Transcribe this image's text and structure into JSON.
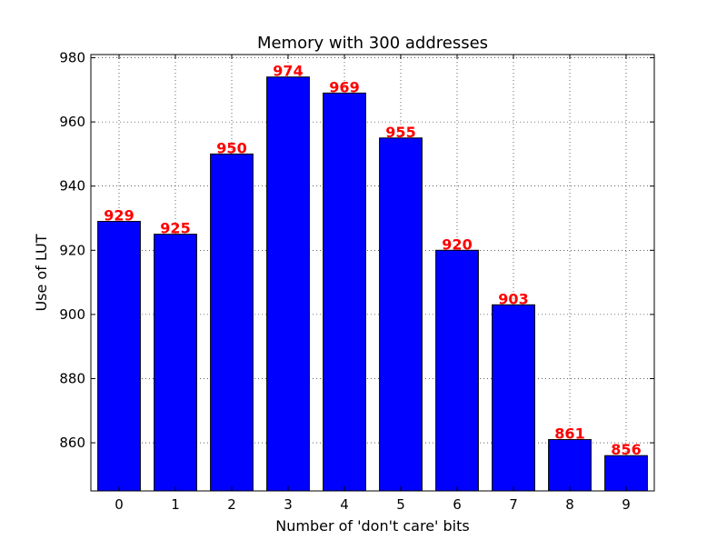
{
  "chart_data": {
    "type": "bar",
    "title": "Memory with 300 addresses",
    "xlabel": "Number of 'don't care' bits",
    "ylabel": "Use of LUT",
    "categories": [
      "0",
      "1",
      "2",
      "3",
      "4",
      "5",
      "6",
      "7",
      "8",
      "9"
    ],
    "values": [
      929,
      925,
      950,
      974,
      969,
      955,
      920,
      903,
      861,
      856
    ],
    "data_labels": [
      "929",
      "925",
      "950",
      "974",
      "969",
      "955",
      "920",
      "903",
      "861",
      "856"
    ],
    "ylim": [
      845,
      981
    ],
    "yticks": [
      "860",
      "880",
      "900",
      "920",
      "940",
      "960",
      "980"
    ],
    "ytick_values": [
      860,
      880,
      900,
      920,
      940,
      960,
      980
    ],
    "grid": true,
    "bar_color": "#0000ff",
    "label_color": "#ff0000",
    "edge_color": "#000000"
  }
}
